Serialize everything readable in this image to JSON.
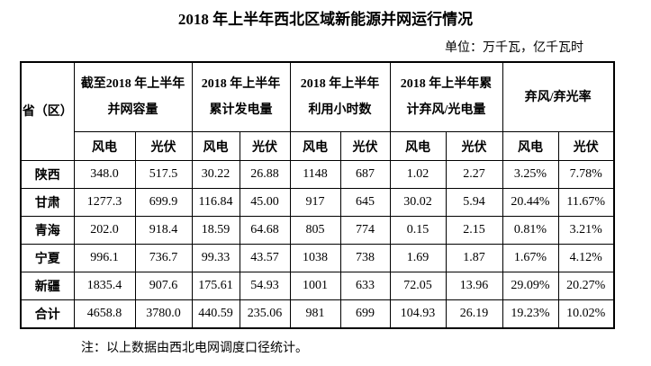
{
  "title": "2018 年上半年西北区域新能源并网运行情况",
  "unit_note": "单位：万千瓦，亿千瓦时",
  "footnote": "注：以上数据由西北电网调度口径统计。",
  "table": {
    "corner_header": "省（区）",
    "groups": [
      {
        "label": "截至2018 年上半年\n并网容量"
      },
      {
        "label": "2018 年上半年\n累计发电量"
      },
      {
        "label": "2018 年上半年\n利用小时数"
      },
      {
        "label": "2018 年上半年累\n计弃风/光电量"
      },
      {
        "label": "弃风/弃光率"
      }
    ],
    "sub_headers": [
      "风电",
      "光伏",
      "风电",
      "光伏",
      "风电",
      "光伏",
      "风电",
      "光伏",
      "风电",
      "光伏"
    ],
    "rows": [
      {
        "province": "陕西",
        "values": [
          "348.0",
          "517.5",
          "30.22",
          "26.88",
          "1148",
          "687",
          "1.02",
          "2.27",
          "3.25%",
          "7.78%"
        ]
      },
      {
        "province": "甘肃",
        "values": [
          "1277.3",
          "699.9",
          "116.84",
          "45.00",
          "917",
          "645",
          "30.02",
          "5.94",
          "20.44%",
          "11.67%"
        ]
      },
      {
        "province": "青海",
        "values": [
          "202.0",
          "918.4",
          "18.59",
          "64.68",
          "805",
          "774",
          "0.15",
          "2.15",
          "0.81%",
          "3.21%"
        ]
      },
      {
        "province": "宁夏",
        "values": [
          "996.1",
          "736.7",
          "99.33",
          "43.57",
          "1038",
          "738",
          "1.69",
          "1.87",
          "1.67%",
          "4.12%"
        ]
      },
      {
        "province": "新疆",
        "values": [
          "1835.4",
          "907.6",
          "175.61",
          "54.93",
          "1001",
          "633",
          "72.05",
          "13.96",
          "29.09%",
          "20.27%"
        ]
      },
      {
        "province": "合计",
        "values": [
          "4658.8",
          "3780.0",
          "440.59",
          "235.06",
          "981",
          "699",
          "104.93",
          "26.19",
          "19.23%",
          "10.02%"
        ]
      }
    ]
  }
}
